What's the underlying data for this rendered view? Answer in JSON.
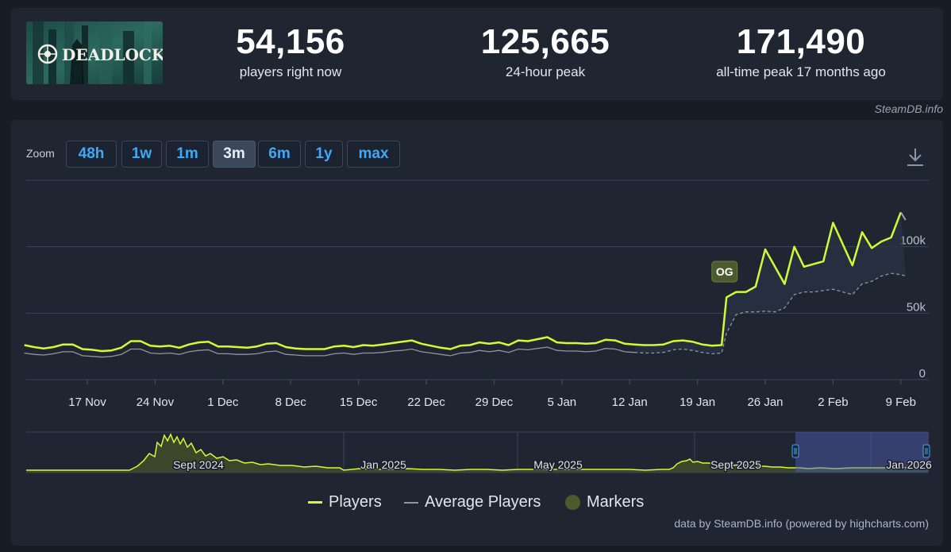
{
  "header": {
    "logo_text": "DEADLOCK",
    "stats": [
      {
        "value": "54,156",
        "label": "players right now"
      },
      {
        "value": "125,665",
        "label": "24-hour peak"
      },
      {
        "value": "171,490",
        "label": "all-time peak 17 months ago"
      }
    ],
    "source": "SteamDB.info"
  },
  "zoom": {
    "label": "Zoom",
    "buttons": [
      "48h",
      "1w",
      "1m",
      "3m",
      "6m",
      "1y",
      "max"
    ],
    "active": "3m"
  },
  "colors": {
    "players": "#d4fa32",
    "average": "#8f96a0",
    "marker": "#4b5b2e",
    "background": "#1f2632"
  },
  "chart_data": {
    "type": "line",
    "x_tick_labels": [
      "17 Nov",
      "24 Nov",
      "1 Dec",
      "8 Dec",
      "15 Dec",
      "22 Dec",
      "29 Dec",
      "5 Jan",
      "12 Jan",
      "19 Jan",
      "26 Jan",
      "2 Feb",
      "9 Feb"
    ],
    "y_tick_labels": [
      "0",
      "50k",
      "100k"
    ],
    "ylim": [
      0,
      150000
    ],
    "x_unit": "days since first visible tick (17 Nov)",
    "players": [
      [
        -6.5,
        26000
      ],
      [
        -5.5,
        24500
      ],
      [
        -4.5,
        23500
      ],
      [
        -3.5,
        24500
      ],
      [
        -2.5,
        26500
      ],
      [
        -1.5,
        26500
      ],
      [
        -0.5,
        23000
      ],
      [
        0.5,
        22500
      ],
      [
        1.5,
        21500
      ],
      [
        2.5,
        22000
      ],
      [
        3.5,
        24000
      ],
      [
        4.5,
        29000
      ],
      [
        5.5,
        29000
      ],
      [
        6.5,
        25500
      ],
      [
        7.5,
        25000
      ],
      [
        8.5,
        25500
      ],
      [
        9.5,
        24000
      ],
      [
        10.5,
        26500
      ],
      [
        11.5,
        28000
      ],
      [
        12.5,
        28500
      ],
      [
        13.5,
        25000
      ],
      [
        14.5,
        25000
      ],
      [
        15.5,
        24500
      ],
      [
        16.5,
        24000
      ],
      [
        17.5,
        25000
      ],
      [
        18.5,
        27000
      ],
      [
        19.5,
        27500
      ],
      [
        20.5,
        24500
      ],
      [
        21.5,
        23500
      ],
      [
        22.5,
        23000
      ],
      [
        23.5,
        23000
      ],
      [
        24.5,
        23000
      ],
      [
        25.5,
        25000
      ],
      [
        26.5,
        25500
      ],
      [
        27.5,
        24500
      ],
      [
        28.5,
        26000
      ],
      [
        29.5,
        25500
      ],
      [
        30.5,
        26500
      ],
      [
        31.5,
        27500
      ],
      [
        32.5,
        28500
      ],
      [
        33.5,
        29500
      ],
      [
        34.5,
        27000
      ],
      [
        35.5,
        25500
      ],
      [
        36.5,
        24000
      ],
      [
        37.5,
        23000
      ],
      [
        38.5,
        25500
      ],
      [
        39.5,
        26000
      ],
      [
        40.5,
        28000
      ],
      [
        41.5,
        27000
      ],
      [
        42.5,
        28000
      ],
      [
        43.5,
        26000
      ],
      [
        44.5,
        29500
      ],
      [
        45.5,
        29000
      ],
      [
        46.5,
        30500
      ],
      [
        47.5,
        32000
      ],
      [
        48.5,
        28000
      ],
      [
        49.5,
        27500
      ],
      [
        50.5,
        27500
      ],
      [
        51.5,
        27000
      ],
      [
        52.5,
        27500
      ],
      [
        53.5,
        30000
      ],
      [
        54.5,
        29500
      ],
      [
        55.5,
        27000
      ],
      [
        56.5,
        26500
      ],
      [
        57.5,
        26000
      ],
      [
        58.5,
        26000
      ],
      [
        59.5,
        26500
      ],
      [
        60.5,
        29000
      ],
      [
        61.5,
        29500
      ],
      [
        62.5,
        28500
      ],
      [
        63.5,
        26500
      ],
      [
        64.5,
        25500
      ],
      [
        65.5,
        26000
      ],
      [
        66,
        62000
      ],
      [
        67,
        66000
      ],
      [
        68,
        66000
      ],
      [
        69,
        70000
      ],
      [
        70,
        98000
      ],
      [
        72,
        72000
      ],
      [
        73,
        100000
      ],
      [
        74,
        85000
      ],
      [
        76,
        89000
      ],
      [
        77,
        118000
      ],
      [
        79,
        86000
      ],
      [
        80,
        111000
      ],
      [
        81,
        99000
      ],
      [
        82,
        104000
      ],
      [
        83,
        107000
      ],
      [
        84,
        126000
      ]
    ],
    "average": [
      [
        -6.5,
        20000
      ],
      [
        -5.5,
        19000
      ],
      [
        -4.5,
        18500
      ],
      [
        -3.5,
        19500
      ],
      [
        -2.5,
        21000
      ],
      [
        -1.5,
        21000
      ],
      [
        -0.5,
        18000
      ],
      [
        0.5,
        17500
      ],
      [
        1.5,
        17000
      ],
      [
        2.5,
        17500
      ],
      [
        3.5,
        19000
      ],
      [
        4.5,
        23000
      ],
      [
        5.5,
        23000
      ],
      [
        6.5,
        20000
      ],
      [
        7.5,
        19500
      ],
      [
        8.5,
        20000
      ],
      [
        9.5,
        19000
      ],
      [
        10.5,
        21000
      ],
      [
        11.5,
        22000
      ],
      [
        12.5,
        22500
      ],
      [
        13.5,
        19500
      ],
      [
        14.5,
        19500
      ],
      [
        15.5,
        19000
      ],
      [
        16.5,
        19000
      ],
      [
        17.5,
        19500
      ],
      [
        18.5,
        21000
      ],
      [
        19.5,
        21500
      ],
      [
        20.5,
        19000
      ],
      [
        21.5,
        18500
      ],
      [
        22.5,
        18000
      ],
      [
        23.5,
        18000
      ],
      [
        24.5,
        18000
      ],
      [
        25.5,
        19500
      ],
      [
        26.5,
        20000
      ],
      [
        27.5,
        19000
      ],
      [
        28.5,
        20000
      ],
      [
        29.5,
        20000
      ],
      [
        30.5,
        20500
      ],
      [
        31.5,
        21500
      ],
      [
        32.5,
        22000
      ],
      [
        33.5,
        23000
      ],
      [
        34.5,
        21000
      ],
      [
        35.5,
        20000
      ],
      [
        36.5,
        19000
      ],
      [
        37.5,
        18000
      ],
      [
        38.5,
        20000
      ],
      [
        39.5,
        20500
      ],
      [
        40.5,
        22000
      ],
      [
        41.5,
        21000
      ],
      [
        42.5,
        22000
      ],
      [
        43.5,
        20500
      ],
      [
        44.5,
        23000
      ],
      [
        45.5,
        22500
      ],
      [
        46.5,
        23500
      ],
      [
        47.5,
        24500
      ],
      [
        48.5,
        22000
      ],
      [
        49.5,
        21500
      ],
      [
        50.5,
        21500
      ],
      [
        51.5,
        21000
      ],
      [
        52.5,
        21500
      ],
      [
        53.5,
        23500
      ],
      [
        54.5,
        23000
      ],
      [
        55.5,
        21000
      ],
      [
        56.5,
        20500
      ]
    ],
    "average_dashed": [
      [
        56.5,
        20500
      ],
      [
        57.5,
        20000
      ],
      [
        58.5,
        20000
      ],
      [
        59.5,
        20500
      ],
      [
        60.5,
        22500
      ],
      [
        61.5,
        23000
      ],
      [
        62.5,
        22000
      ],
      [
        63.5,
        20500
      ],
      [
        64.5,
        19500
      ],
      [
        65.5,
        20000
      ],
      [
        66,
        35000
      ],
      [
        67,
        49000
      ],
      [
        68,
        51000
      ],
      [
        69,
        51000
      ],
      [
        70,
        51500
      ],
      [
        71,
        51000
      ],
      [
        72,
        54000
      ],
      [
        73,
        64000
      ],
      [
        74,
        66000
      ],
      [
        75,
        66000
      ],
      [
        76,
        67000
      ],
      [
        77,
        68000
      ],
      [
        78,
        66000
      ],
      [
        79,
        64000
      ],
      [
        80,
        72000
      ],
      [
        81,
        74000
      ],
      [
        82,
        78000
      ],
      [
        83,
        80000
      ],
      [
        84,
        79000
      ],
      [
        84.5,
        78000
      ]
    ],
    "markers": [
      {
        "x": 65.8,
        "label": "OG"
      }
    ],
    "navigator": {
      "labels": [
        "Sept 2024",
        "Jan 2025",
        "May 2025",
        "Sept 2025",
        "Jan 2026"
      ],
      "series": [
        [
          0,
          3
        ],
        [
          80,
          3
        ],
        [
          130,
          3
        ],
        [
          140,
          8
        ],
        [
          148,
          15
        ],
        [
          155,
          24
        ],
        [
          162,
          20
        ],
        [
          165,
          38
        ],
        [
          170,
          33
        ],
        [
          174,
          47
        ],
        [
          178,
          40
        ],
        [
          182,
          48
        ],
        [
          186,
          38
        ],
        [
          190,
          45
        ],
        [
          194,
          36
        ],
        [
          198,
          43
        ],
        [
          203,
          32
        ],
        [
          208,
          37
        ],
        [
          214,
          25
        ],
        [
          220,
          29
        ],
        [
          226,
          21
        ],
        [
          232,
          24
        ],
        [
          240,
          18
        ],
        [
          248,
          20
        ],
        [
          256,
          15
        ],
        [
          265,
          16
        ],
        [
          275,
          12
        ],
        [
          285,
          13
        ],
        [
          295,
          10
        ],
        [
          305,
          11
        ],
        [
          320,
          9
        ],
        [
          335,
          9
        ],
        [
          350,
          7
        ],
        [
          365,
          8
        ],
        [
          380,
          6
        ],
        [
          395,
          6
        ],
        [
          400,
          3
        ],
        [
          420,
          5
        ],
        [
          440,
          4
        ],
        [
          460,
          4
        ],
        [
          480,
          5
        ],
        [
          500,
          4
        ],
        [
          520,
          4
        ],
        [
          540,
          3
        ],
        [
          560,
          4
        ],
        [
          580,
          4
        ],
        [
          600,
          3
        ],
        [
          620,
          4
        ],
        [
          640,
          4
        ],
        [
          660,
          4
        ],
        [
          680,
          4
        ],
        [
          700,
          4
        ],
        [
          720,
          4
        ],
        [
          740,
          4
        ],
        [
          760,
          4
        ],
        [
          780,
          3
        ],
        [
          800,
          4
        ],
        [
          810,
          4
        ],
        [
          815,
          6
        ],
        [
          820,
          11
        ],
        [
          826,
          14
        ],
        [
          832,
          15
        ],
        [
          836,
          17
        ],
        [
          840,
          13
        ],
        [
          846,
          14
        ],
        [
          852,
          12
        ],
        [
          860,
          12
        ],
        [
          870,
          10
        ],
        [
          880,
          10
        ],
        [
          890,
          9
        ],
        [
          900,
          10
        ],
        [
          910,
          9
        ],
        [
          920,
          8
        ],
        [
          930,
          8
        ],
        [
          940,
          7
        ],
        [
          950,
          7
        ],
        [
          960,
          6
        ],
        [
          968,
          6
        ],
        [
          975,
          6
        ],
        [
          985,
          5
        ],
        [
          1000,
          6
        ],
        [
          1020,
          5
        ],
        [
          1040,
          6
        ],
        [
          1060,
          6
        ],
        [
          1080,
          6
        ],
        [
          1100,
          6
        ],
        [
          1120,
          7
        ],
        [
          1136,
          12
        ]
      ]
    },
    "legend": [
      "Players",
      "Average Players",
      "Markers"
    ],
    "credits": "data by SteamDB.info (powered by highcharts.com)"
  }
}
